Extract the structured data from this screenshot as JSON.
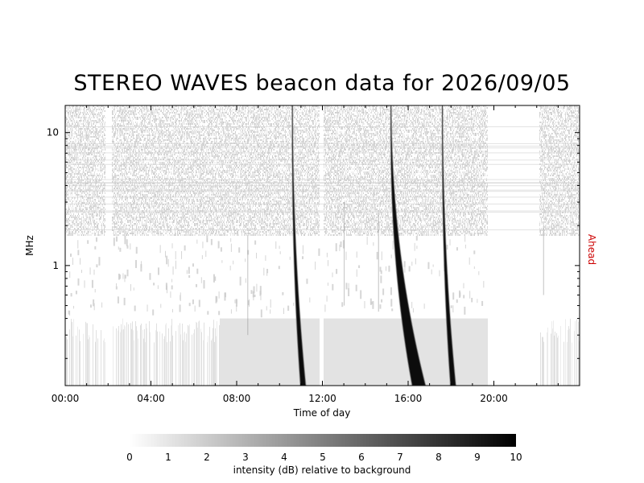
{
  "chart_data": {
    "type": "heatmap",
    "title": "STEREO WAVES beacon data for 2026/09/05",
    "xlabel": "Time of day",
    "ylabel": "MHz",
    "spacecraft_label": "Ahead",
    "x_unit": "hours",
    "xlim": [
      0,
      24
    ],
    "ylim": [
      0.125,
      16.0
    ],
    "y_scale": "log",
    "x_ticks": [
      {
        "value": 0,
        "label": "00:00"
      },
      {
        "value": 4,
        "label": "04:00"
      },
      {
        "value": 8,
        "label": "08:00"
      },
      {
        "value": 12,
        "label": "12:00"
      },
      {
        "value": 16,
        "label": "16:00"
      },
      {
        "value": 20,
        "label": "20:00"
      }
    ],
    "y_ticks": [
      {
        "value": 1,
        "label": "1"
      },
      {
        "value": 10,
        "label": "10"
      }
    ],
    "colorbar": {
      "label": "intensity (dB) relative to background",
      "min": 0,
      "max": 10,
      "ticks": [
        "0",
        "1",
        "2",
        "3",
        "4",
        "5",
        "6",
        "7",
        "8",
        "9",
        "10"
      ],
      "colormap": "white-to-black"
    },
    "data_gaps_hours": [
      [
        1.85,
        2.15
      ],
      [
        11.85,
        12.05
      ],
      [
        19.7,
        22.1
      ]
    ],
    "bursts": [
      {
        "start_hour": 10.6,
        "end_hour": 11.1,
        "peak_db": 10
      },
      {
        "start_hour": 15.2,
        "end_hour": 16.5,
        "peak_db": 10
      },
      {
        "start_hour": 17.6,
        "end_hour": 18.1,
        "peak_db": 10
      }
    ]
  },
  "colors": {
    "axis": "#000000",
    "ahead_label": "#cc0000",
    "background_noise": "#e4e4e4",
    "burst": "#000000"
  }
}
